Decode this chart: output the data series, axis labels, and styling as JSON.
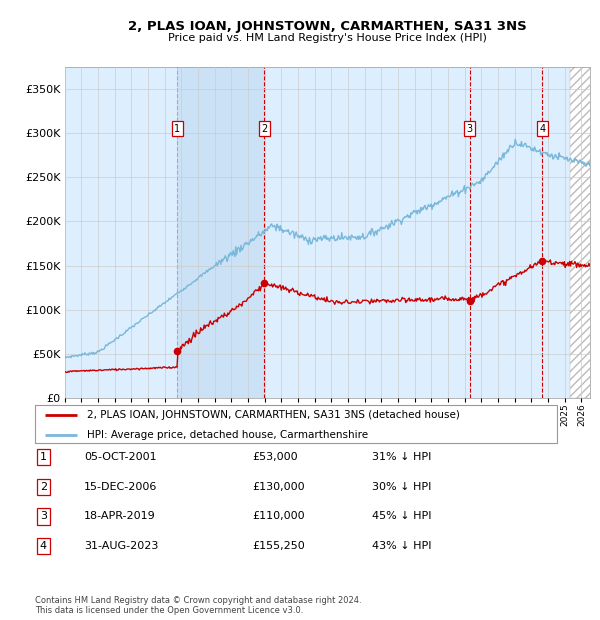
{
  "title": "2, PLAS IOAN, JOHNSTOWN, CARMARTHEN, SA31 3NS",
  "subtitle": "Price paid vs. HM Land Registry's House Price Index (HPI)",
  "ytick_values": [
    0,
    50000,
    100000,
    150000,
    200000,
    250000,
    300000,
    350000
  ],
  "ylim": [
    0,
    375000
  ],
  "xlim_start": 1995.0,
  "xlim_end": 2026.5,
  "sale_dates": [
    2001.76,
    2006.96,
    2019.29,
    2023.66
  ],
  "sale_prices": [
    53000,
    130000,
    110000,
    155250
  ],
  "sale_labels": [
    "1",
    "2",
    "3",
    "4"
  ],
  "table_rows": [
    {
      "num": "1",
      "date": "05-OCT-2001",
      "price": "£53,000",
      "pct": "31% ↓ HPI"
    },
    {
      "num": "2",
      "date": "15-DEC-2006",
      "price": "£130,000",
      "pct": "30% ↓ HPI"
    },
    {
      "num": "3",
      "date": "18-APR-2019",
      "price": "£110,000",
      "pct": "45% ↓ HPI"
    },
    {
      "num": "4",
      "date": "31-AUG-2023",
      "price": "£155,250",
      "pct": "43% ↓ HPI"
    }
  ],
  "legend_house": "2, PLAS IOAN, JOHNSTOWN, CARMARTHEN, SA31 3NS (detached house)",
  "legend_hpi": "HPI: Average price, detached house, Carmarthenshire",
  "footnote": "Contains HM Land Registry data © Crown copyright and database right 2024.\nThis data is licensed under the Open Government Licence v3.0.",
  "hpi_color": "#7ab8d9",
  "sale_color": "#cc0000",
  "vline1_color": "#aaaaaa",
  "vline_color": "#cc0000",
  "grid_color": "#cccccc",
  "bg_color": "#ddeeff",
  "shade_region": [
    2001.76,
    2006.96
  ]
}
